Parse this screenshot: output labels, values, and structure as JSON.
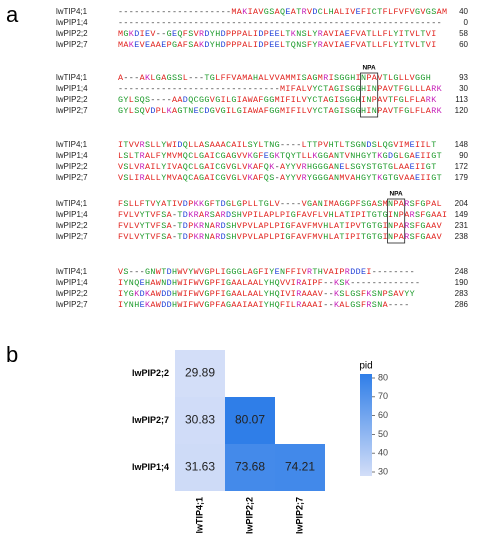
{
  "panel_a": {
    "label": "a",
    "motif_labels": [
      "NPA",
      "NPA"
    ],
    "blocks": [
      {
        "rows": [
          {
            "name": "lwTIP4;1",
            "seq": "---------------------MAKIAVGSAQEATRVDCLHALIVEFICTFLFVFVGVGSAM",
            "end": "40"
          },
          {
            "name": "lwPIP1;4",
            "seq": "------------------------------------------------------------",
            "end": "0"
          },
          {
            "name": "lwPIP2;2",
            "seq": "MGKDIEV--GEQFSVRDYHDPPPALIDPEELTKNSLYRAVIAEFVATLLFLYITVLTVI",
            "end": "58"
          },
          {
            "name": "lwPIP2;7",
            "seq": "MAKEVEAAEPGAFSAKDYHDPPPALIDPEELTQNSFYRAVIAEFVATLLFLYITVLTVI",
            "end": "60"
          }
        ]
      },
      {
        "rows": [
          {
            "name": "lwTIP4;1",
            "seq": "A---AKLGAGSSL---TGLFFVAMAHALVVAMMISAGMRISGGHINPAVTLGLLVGGH",
            "end": "93"
          },
          {
            "name": "lwPIP1;4",
            "seq": "------------------------------MIFALVYCTAGISGGHINPAVTFGLLLARK",
            "end": "30"
          },
          {
            "name": "lwPIP2;2",
            "seq": "GYLSQS----AADQCGGVGILGIAWAFGGMIFILVYCTAGISGGHINPAVTFGLFLARK",
            "end": "113"
          },
          {
            "name": "lwPIP2;7",
            "seq": "GYLSQVDPLKAGTNECDGVGILGIAWAFGGMIFILVYCTAGISGGHINPAVTFGLFLARK",
            "end": "120"
          }
        ]
      },
      {
        "rows": [
          {
            "name": "lwTIP4;1",
            "seq": "ITVVRSLLYWIDQLLASAAACAILSYLTNG----LTTPVHTLTSGNDSLQGVIMEIILT",
            "end": "148"
          },
          {
            "name": "lwPIP1;4",
            "seq": "LSLTRALFYMVMQCLGAICGAGVVKGFEGKTQYTLLKGGANTVNHGYTKGDGLGAEIIGT",
            "end": "90"
          },
          {
            "name": "lwPIP2;2",
            "seq": "VSLVRAILYIVAQCLGAICGVGLVKAFQK-AYYVRHGGGANELSGYSTGTGLAAEIIGT",
            "end": "172"
          },
          {
            "name": "lwPIP2;7",
            "seq": "VSLIRALLYMVAQCAGAICGVGLVKAFQS-AYYVRYGGGANMVAHGYTKGTGVAAEIIGT",
            "end": "179"
          }
        ]
      },
      {
        "rows": [
          {
            "name": "lwTIP4;1",
            "seq": "FSLLFTVYATIVDPKKGFTDGLGPLLTGLV----VGANIMAGGPFSGASMNPARSFGPAL",
            "end": "204"
          },
          {
            "name": "lwPIP1;4",
            "seq": "FVLVYTVFSA-TDKRARSARDSHVPILAPLPIGFAVFLVHLATIPITGTGINPARSFGAAI",
            "end": "149"
          },
          {
            "name": "lwPIP2;2",
            "seq": "FVLVYTVFSA-TDPKRNARDSHVPVLAPLPIGFAVFMVHLATIPVTGTGINPARSFGAAV",
            "end": "231"
          },
          {
            "name": "lwPIP2;7",
            "seq": "FVLVYTVFSA-TDPKRNARDSHVPVLAPLPIGFAVFMVHLATIPITGTGINPARSFGAAV",
            "end": "238"
          }
        ]
      },
      {
        "rows": [
          {
            "name": "lwTIP4;1",
            "seq": "VS---GNWTDHWVYWVGPLIGGGLAGFIYENFFIVRTHVAIPRDDEI--------",
            "end": "248"
          },
          {
            "name": "lwPIP1;4",
            "seq": "IYNQEHAWNDHWIFWVGPFIGAALAALYHQVVIRAIPF--KSK-------------",
            "end": "190"
          },
          {
            "name": "lwPIP2;2",
            "seq": "IYGKDKAWDDHWIFWVGPFIGAALAALYHQIVIRAAAV--KSLGSFKSNPSAVYY",
            "end": "283"
          },
          {
            "name": "lwPIP2;7",
            "seq": "IYNHEKAWDDHWIFWVGPFAGAAIAAIYHQFILRAAAI--KALGSFRSNA----",
            "end": "286"
          }
        ]
      }
    ]
  },
  "chart_data": {
    "type": "heatmap",
    "panel_label": "b",
    "x_categories": [
      "lwTIP4;1",
      "lwPIP2;2",
      "lwPIP2;7"
    ],
    "y_categories": [
      "lwPIP2;2",
      "lwPIP2;7",
      "lwPIP1;4"
    ],
    "values": [
      [
        29.89,
        null,
        null
      ],
      [
        30.83,
        80.07,
        null
      ],
      [
        31.63,
        73.68,
        74.21
      ]
    ],
    "colorbar_label": "pid",
    "clim": [
      30,
      80
    ],
    "cticks": [
      30,
      40,
      50,
      60,
      70,
      80
    ],
    "colors": [
      "#d3def8",
      "#2f7ee8"
    ]
  }
}
